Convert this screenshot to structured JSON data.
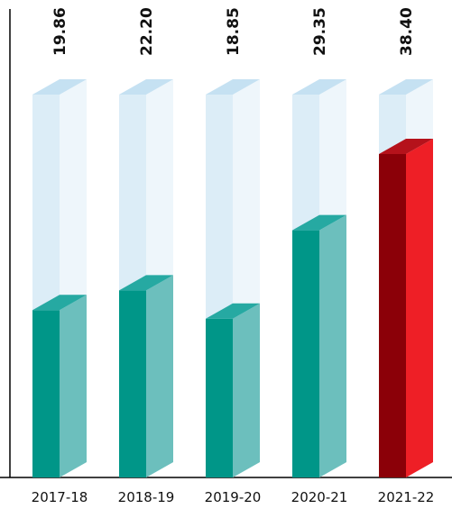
{
  "chart_data": {
    "type": "bar",
    "categories": [
      "2017-18",
      "2018-19",
      "2019-20",
      "2020-21",
      "2021-22"
    ],
    "values": [
      19.86,
      22.2,
      18.85,
      29.35,
      38.4
    ],
    "value_labels": [
      "19.86",
      "22.20",
      "18.85",
      "29.35",
      "38.40"
    ],
    "ylim": [
      0,
      40
    ],
    "grid": false,
    "title": "",
    "xlabel": "",
    "ylabel": "",
    "colors": {
      "bar_front": "#009688",
      "bar_side": "#6cbfbd",
      "bar_top": "#26a9a2",
      "highlight_front": "#8b0008",
      "highlight_side": "#ee1f26",
      "highlight_top": "#b5121b",
      "ghost_front": "#dcedf7",
      "ghost_side": "#eef6fb",
      "ghost_top": "#c5e1f2",
      "axis": "#000000"
    },
    "highlight_index": 4
  }
}
